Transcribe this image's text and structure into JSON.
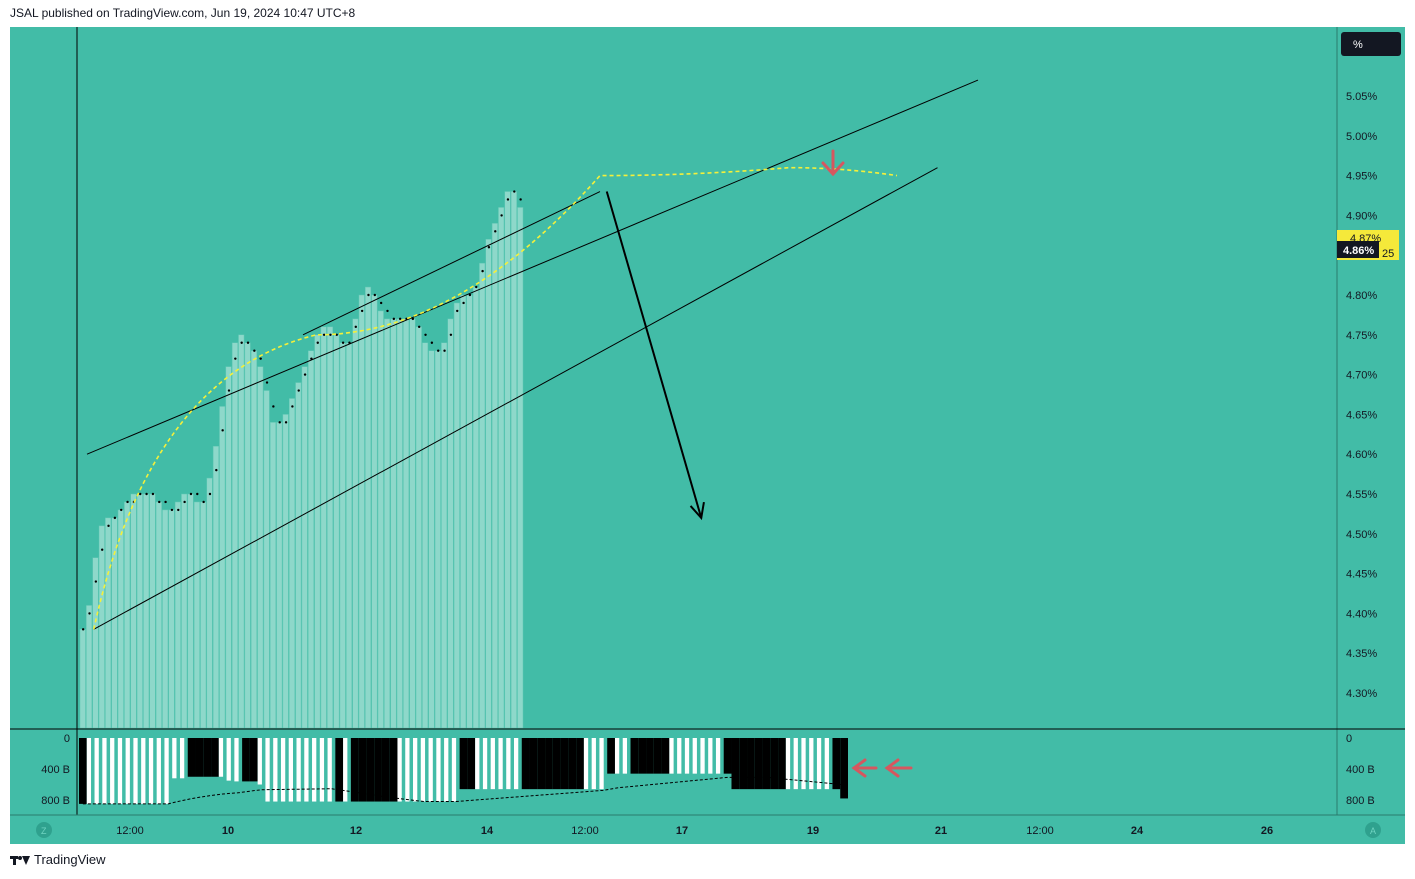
{
  "header": {
    "publish_text": "JSAL published on TradingView.com, Jun 19, 2024 10:47 UTC+8"
  },
  "footer": {
    "brand": "TradingView"
  },
  "colors": {
    "background": "#42bca7",
    "bar_fill": "#8ed8ca",
    "accent_arrow": "#d6575f",
    "curve": "#f5f03a",
    "price_label_bg": "#131722",
    "price_label_alt_bg": "#f5e93a"
  },
  "chart_data": {
    "type": "bar",
    "price_pane": {
      "unit": "%",
      "ylim": [
        4.25,
        5.1
      ],
      "yticks": [
        "5.05%",
        "5.00%",
        "4.95%",
        "4.90%",
        "4.85%",
        "4.80%",
        "4.75%",
        "4.70%",
        "4.65%",
        "4.60%",
        "4.55%",
        "4.50%",
        "4.45%",
        "4.40%",
        "4.35%",
        "4.30%"
      ],
      "ytick_values": [
        5.05,
        5.0,
        4.95,
        4.9,
        4.85,
        4.8,
        4.75,
        4.7,
        4.65,
        4.6,
        4.55,
        4.5,
        4.45,
        4.4,
        4.35,
        4.3
      ],
      "current_price_label": "4.86%",
      "secondary_price_label": "4.87%",
      "secondary_price_suffix": "25",
      "values": [
        4.38,
        4.41,
        4.47,
        4.51,
        4.52,
        4.52,
        4.53,
        4.54,
        4.55,
        4.55,
        4.55,
        4.55,
        4.54,
        4.53,
        4.53,
        4.54,
        4.55,
        4.55,
        4.54,
        4.54,
        4.57,
        4.61,
        4.66,
        4.71,
        4.74,
        4.75,
        4.74,
        4.73,
        4.71,
        4.68,
        4.64,
        4.64,
        4.65,
        4.67,
        4.69,
        4.71,
        4.73,
        4.75,
        4.76,
        4.76,
        4.75,
        4.74,
        4.74,
        4.77,
        4.8,
        4.81,
        4.8,
        4.78,
        4.77,
        4.77,
        4.77,
        4.77,
        4.77,
        4.76,
        4.74,
        4.73,
        4.73,
        4.74,
        4.77,
        4.79,
        4.8,
        4.8,
        4.81,
        4.84,
        4.87,
        4.89,
        4.91,
        4.93,
        4.93,
        4.91
      ],
      "dot_values": [
        4.38,
        4.4,
        4.44,
        4.48,
        4.51,
        4.52,
        4.53,
        4.54,
        4.54,
        4.55,
        4.55,
        4.55,
        4.54,
        4.54,
        4.53,
        4.53,
        4.54,
        4.55,
        4.55,
        4.54,
        4.55,
        4.58,
        4.63,
        4.68,
        4.72,
        4.74,
        4.74,
        4.73,
        4.72,
        4.69,
        4.66,
        4.64,
        4.64,
        4.66,
        4.68,
        4.7,
        4.72,
        4.74,
        4.75,
        4.75,
        4.75,
        4.74,
        4.74,
        4.76,
        4.78,
        4.8,
        4.8,
        4.79,
        4.78,
        4.77,
        4.77,
        4.77,
        4.77,
        4.76,
        4.75,
        4.74,
        4.73,
        4.73,
        4.75,
        4.78,
        4.79,
        4.8,
        4.81,
        4.83,
        4.86,
        4.88,
        4.9,
        4.92,
        4.93,
        4.92
      ]
    },
    "volume_pane": {
      "yticks": [
        "0",
        "400 B",
        "800 B"
      ],
      "ytick_values": [
        0,
        400,
        800
      ],
      "ylim": [
        0,
        900
      ],
      "bars": [
        {
          "v": 850,
          "c": "black"
        },
        {
          "v": 850,
          "c": "white"
        },
        {
          "v": 850,
          "c": "white"
        },
        {
          "v": 850,
          "c": "white"
        },
        {
          "v": 850,
          "c": "white"
        },
        {
          "v": 850,
          "c": "white"
        },
        {
          "v": 850,
          "c": "white"
        },
        {
          "v": 850,
          "c": "white"
        },
        {
          "v": 850,
          "c": "white"
        },
        {
          "v": 850,
          "c": "white"
        },
        {
          "v": 850,
          "c": "white"
        },
        {
          "v": 850,
          "c": "white"
        },
        {
          "v": 520,
          "c": "white"
        },
        {
          "v": 520,
          "c": "white"
        },
        {
          "v": 500,
          "c": "black"
        },
        {
          "v": 500,
          "c": "black"
        },
        {
          "v": 500,
          "c": "black"
        },
        {
          "v": 500,
          "c": "black"
        },
        {
          "v": 500,
          "c": "white"
        },
        {
          "v": 550,
          "c": "white"
        },
        {
          "v": 560,
          "c": "white"
        },
        {
          "v": 560,
          "c": "black"
        },
        {
          "v": 560,
          "c": "black"
        },
        {
          "v": 600,
          "c": "white"
        },
        {
          "v": 820,
          "c": "white"
        },
        {
          "v": 820,
          "c": "white"
        },
        {
          "v": 820,
          "c": "white"
        },
        {
          "v": 820,
          "c": "white"
        },
        {
          "v": 820,
          "c": "white"
        },
        {
          "v": 820,
          "c": "white"
        },
        {
          "v": 820,
          "c": "white"
        },
        {
          "v": 820,
          "c": "white"
        },
        {
          "v": 820,
          "c": "white"
        },
        {
          "v": 820,
          "c": "black"
        },
        {
          "v": 820,
          "c": "white"
        },
        {
          "v": 820,
          "c": "black"
        },
        {
          "v": 820,
          "c": "black"
        },
        {
          "v": 820,
          "c": "black"
        },
        {
          "v": 820,
          "c": "black"
        },
        {
          "v": 820,
          "c": "black"
        },
        {
          "v": 820,
          "c": "black"
        },
        {
          "v": 820,
          "c": "white"
        },
        {
          "v": 820,
          "c": "white"
        },
        {
          "v": 820,
          "c": "white"
        },
        {
          "v": 820,
          "c": "white"
        },
        {
          "v": 820,
          "c": "white"
        },
        {
          "v": 820,
          "c": "white"
        },
        {
          "v": 820,
          "c": "white"
        },
        {
          "v": 820,
          "c": "white"
        },
        {
          "v": 660,
          "c": "black"
        },
        {
          "v": 660,
          "c": "black"
        },
        {
          "v": 660,
          "c": "white"
        },
        {
          "v": 660,
          "c": "white"
        },
        {
          "v": 660,
          "c": "white"
        },
        {
          "v": 660,
          "c": "white"
        },
        {
          "v": 660,
          "c": "white"
        },
        {
          "v": 660,
          "c": "white"
        },
        {
          "v": 660,
          "c": "black"
        },
        {
          "v": 660,
          "c": "black"
        },
        {
          "v": 660,
          "c": "black"
        },
        {
          "v": 660,
          "c": "black"
        },
        {
          "v": 660,
          "c": "black"
        },
        {
          "v": 660,
          "c": "black"
        },
        {
          "v": 660,
          "c": "black"
        },
        {
          "v": 660,
          "c": "black"
        },
        {
          "v": 660,
          "c": "white"
        },
        {
          "v": 660,
          "c": "white"
        },
        {
          "v": 660,
          "c": "white"
        },
        {
          "v": 460,
          "c": "black"
        },
        {
          "v": 460,
          "c": "white"
        },
        {
          "v": 460,
          "c": "white"
        },
        {
          "v": 460,
          "c": "black"
        },
        {
          "v": 460,
          "c": "black"
        },
        {
          "v": 460,
          "c": "black"
        },
        {
          "v": 460,
          "c": "black"
        },
        {
          "v": 460,
          "c": "black"
        },
        {
          "v": 460,
          "c": "white"
        },
        {
          "v": 460,
          "c": "white"
        },
        {
          "v": 460,
          "c": "white"
        },
        {
          "v": 460,
          "c": "white"
        },
        {
          "v": 460,
          "c": "white"
        },
        {
          "v": 460,
          "c": "white"
        },
        {
          "v": 460,
          "c": "white"
        },
        {
          "v": 460,
          "c": "black"
        },
        {
          "v": 660,
          "c": "black"
        },
        {
          "v": 660,
          "c": "black"
        },
        {
          "v": 660,
          "c": "black"
        },
        {
          "v": 660,
          "c": "black"
        },
        {
          "v": 660,
          "c": "black"
        },
        {
          "v": 660,
          "c": "black"
        },
        {
          "v": 660,
          "c": "black"
        },
        {
          "v": 660,
          "c": "white"
        },
        {
          "v": 660,
          "c": "white"
        },
        {
          "v": 660,
          "c": "white"
        },
        {
          "v": 660,
          "c": "white"
        },
        {
          "v": 660,
          "c": "white"
        },
        {
          "v": 660,
          "c": "white"
        },
        {
          "v": 660,
          "c": "black"
        },
        {
          "v": 780,
          "c": "black"
        }
      ]
    },
    "x_axis": {
      "labels": [
        "12:00",
        "10",
        "12",
        "14",
        "12:00",
        "17",
        "19",
        "21",
        "12:00",
        "24",
        "26"
      ],
      "bold_labels": [
        "10",
        "12",
        "14",
        "17",
        "19",
        "21",
        "24",
        "26"
      ]
    },
    "drawings": {
      "channel_upper": [
        [
          0,
          4.6
        ],
        [
          6.6,
          5.07
        ]
      ],
      "channel_lower": [
        [
          0.05,
          4.38
        ],
        [
          6.3,
          4.96
        ]
      ],
      "wedge_upper": [
        [
          1.6,
          4.75
        ],
        [
          3.8,
          4.93
        ]
      ],
      "curve_points": [
        [
          0.05,
          4.38
        ],
        [
          1.7,
          4.75
        ],
        [
          3.8,
          4.95
        ],
        [
          5.2,
          4.96
        ],
        [
          6.0,
          4.95
        ]
      ],
      "projection_arrow": [
        [
          3.85,
          4.93
        ],
        [
          4.55,
          4.52
        ]
      ]
    }
  },
  "top_right_unit_button": "%",
  "scale_buttons": {
    "left": "Z",
    "right": "A"
  }
}
